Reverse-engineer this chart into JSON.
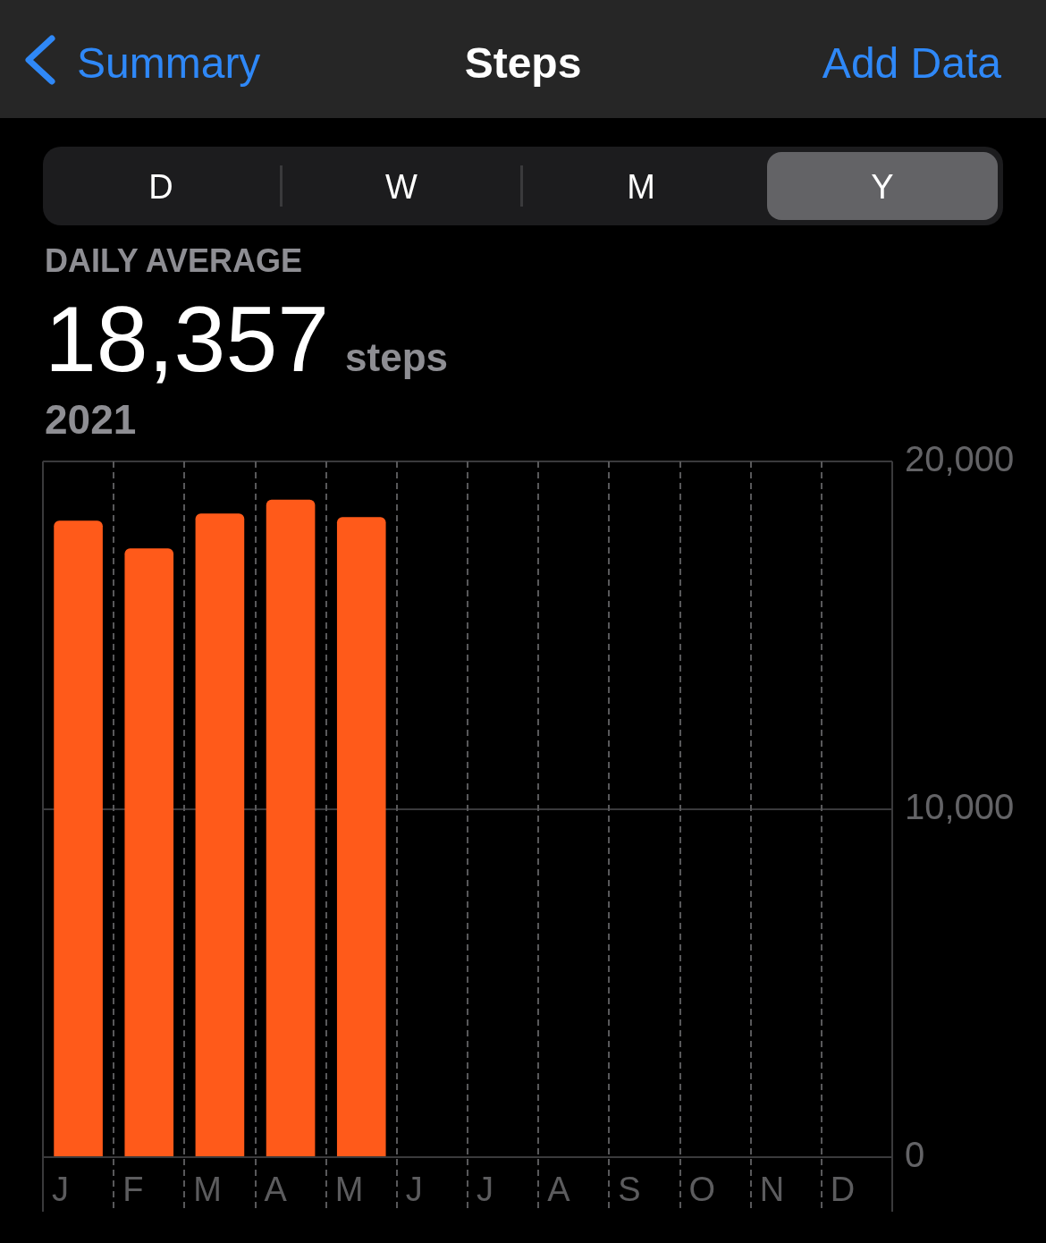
{
  "chart_data": {
    "type": "bar",
    "title": "Steps",
    "subtitle": "DAILY AVERAGE",
    "categories": [
      "J",
      "F",
      "M",
      "A",
      "M",
      "J",
      "J",
      "A",
      "S",
      "O",
      "N",
      "D"
    ],
    "values": [
      18300,
      17500,
      18500,
      18900,
      18400,
      null,
      null,
      null,
      null,
      null,
      null,
      null
    ],
    "color": "#ff5a1a",
    "ylim": [
      0,
      20000
    ],
    "yticks": [
      0,
      {
        "value": 10000,
        "label": "10,000"
      },
      {
        "value": 20000,
        "label": "20,000"
      }
    ],
    "grid": true,
    "annotations": [
      "Summary",
      "Add Data",
      "D",
      "W",
      "M",
      "Y",
      "18,357",
      "steps",
      "2021"
    ]
  }
}
